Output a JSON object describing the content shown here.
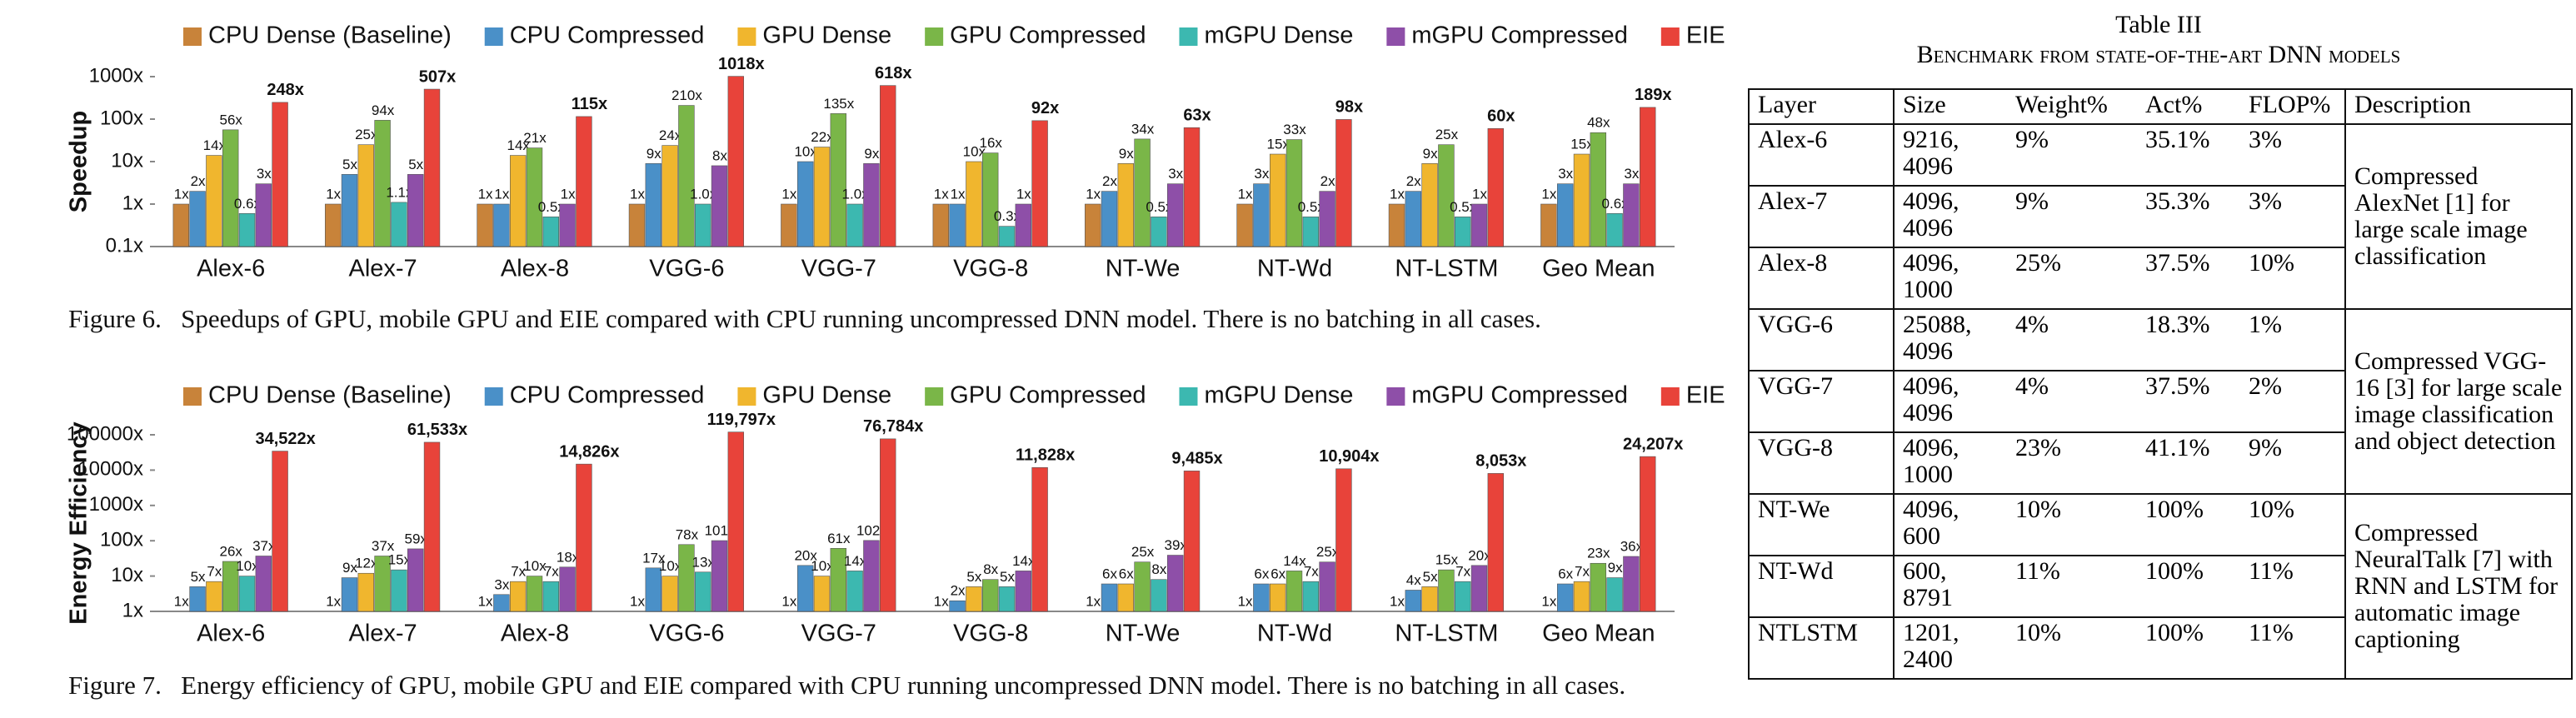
{
  "chart_data": [
    {
      "type": "bar",
      "ylabel": "Speedup",
      "log_scale": true,
      "legend": "top",
      "grid": false,
      "caption": "Figure 6.   Speedups of GPU, mobile GPU and EIE compared with CPU running uncompressed DNN model. There is no batching in all cases.",
      "categories": [
        "Alex-6",
        "Alex-7",
        "Alex-8",
        "VGG-6",
        "VGG-7",
        "VGG-8",
        "NT-We",
        "NT-Wd",
        "NT-LSTM",
        "Geo Mean"
      ],
      "ylim": [
        0.1,
        1000
      ],
      "yticks": [
        {
          "value": 0.1,
          "label": "0.1x"
        },
        {
          "value": 1,
          "label": "1x"
        },
        {
          "value": 10,
          "label": "10x"
        },
        {
          "value": 100,
          "label": "100x"
        },
        {
          "value": 1000,
          "label": "1000x"
        }
      ],
      "series": [
        {
          "name": "CPU Dense (Baseline)",
          "color": "#c8833a",
          "values": [
            1,
            1,
            1,
            1,
            1,
            1,
            1,
            1,
            1,
            1
          ],
          "value_labels": [
            "1x",
            "1x",
            "1x",
            "1x",
            "1x",
            "1x",
            "1x",
            "1x",
            "1x",
            "1x"
          ]
        },
        {
          "name": "CPU Compressed",
          "color": "#4a90c8",
          "values": [
            2,
            5,
            1,
            9,
            10,
            1,
            2,
            3,
            2,
            3
          ],
          "value_labels": [
            "2x",
            "5x",
            "1x",
            "9x",
            "10x",
            "1x",
            "2x",
            "3x",
            "2x",
            "3x"
          ]
        },
        {
          "name": "GPU Dense",
          "color": "#f0b62e",
          "values": [
            14,
            25,
            14,
            24,
            22,
            10,
            9,
            15,
            9,
            15
          ],
          "value_labels": [
            "14x",
            "25x",
            "14x",
            "24x",
            "22x",
            "10x",
            "9x",
            "15x",
            "9x",
            "15x"
          ]
        },
        {
          "name": "GPU Compressed",
          "color": "#7ab648",
          "values": [
            56,
            94,
            21,
            210,
            135,
            16,
            34,
            33,
            25,
            48
          ],
          "value_labels": [
            "56x",
            "94x",
            "21x",
            "210x",
            "135x",
            "16x",
            "34x",
            "33x",
            "25x",
            "48x"
          ]
        },
        {
          "name": "mGPU Dense",
          "color": "#3cb8b0",
          "values": [
            0.6,
            1.1,
            0.5,
            1.0,
            1.0,
            0.3,
            0.5,
            0.5,
            0.5,
            0.6
          ],
          "value_labels": [
            "0.6x",
            "1.1x",
            "0.5x",
            "1.0x",
            "1.0x",
            "0.3x",
            "0.5x",
            "0.5x",
            "0.5x",
            "0.6x"
          ]
        },
        {
          "name": "mGPU Compressed",
          "color": "#8e4fa8",
          "values": [
            3,
            5,
            1,
            8,
            9,
            1,
            3,
            2,
            1,
            3
          ],
          "value_labels": [
            "3x",
            "5x",
            "1x",
            "8x",
            "9x",
            "1x",
            "3x",
            "2x",
            "1x",
            "3x"
          ]
        },
        {
          "name": "EIE",
          "color": "#e8433a",
          "values": [
            248,
            507,
            115,
            1018,
            618,
            92,
            63,
            98,
            60,
            189
          ],
          "value_labels": [
            "248x",
            "507x",
            "115x",
            "1018x",
            "618x",
            "92x",
            "63x",
            "98x",
            "60x",
            "189x"
          ]
        }
      ]
    },
    {
      "type": "bar",
      "ylabel": "Energy Efficiency",
      "log_scale": true,
      "legend": "top",
      "grid": false,
      "caption": "Figure 7.   Energy efficiency of GPU, mobile GPU and EIE compared with CPU running uncompressed DNN model. There is no batching in all cases.",
      "categories": [
        "Alex-6",
        "Alex-7",
        "Alex-8",
        "VGG-6",
        "VGG-7",
        "VGG-8",
        "NT-We",
        "NT-Wd",
        "NT-LSTM",
        "Geo Mean"
      ],
      "ylim": [
        1,
        100000
      ],
      "yticks": [
        {
          "value": 1,
          "label": "1x"
        },
        {
          "value": 10,
          "label": "10x"
        },
        {
          "value": 100,
          "label": "100x"
        },
        {
          "value": 1000,
          "label": "1000x"
        },
        {
          "value": 10000,
          "label": "10000x"
        },
        {
          "value": 100000,
          "label": "100000x"
        }
      ],
      "series": [
        {
          "name": "CPU Dense (Baseline)",
          "color": "#c8833a",
          "values": [
            1,
            1,
            1,
            1,
            1,
            1,
            1,
            1,
            1,
            1
          ],
          "value_labels": [
            "1x",
            "1x",
            "1x",
            "1x",
            "1x",
            "1x",
            "1x",
            "1x",
            "1x",
            "1x"
          ]
        },
        {
          "name": "CPU Compressed",
          "color": "#4a90c8",
          "values": [
            5,
            9,
            3,
            17,
            20,
            2,
            6,
            6,
            4,
            6
          ],
          "value_labels": [
            "5x",
            "9x",
            "3x",
            "17x",
            "20x",
            "2x",
            "6x",
            "6x",
            "4x",
            "6x"
          ]
        },
        {
          "name": "GPU Dense",
          "color": "#f0b62e",
          "values": [
            7,
            12,
            7,
            10,
            10,
            5,
            6,
            6,
            5,
            7
          ],
          "value_labels": [
            "7x",
            "12x",
            "7x",
            "10x",
            "10x",
            "5x",
            "6x",
            "6x",
            "5x",
            "7x"
          ]
        },
        {
          "name": "GPU Compressed",
          "color": "#7ab648",
          "values": [
            26,
            37,
            10,
            78,
            61,
            8,
            25,
            14,
            15,
            23
          ],
          "value_labels": [
            "26x",
            "37x",
            "10x",
            "78x",
            "61x",
            "8x",
            "25x",
            "14x",
            "15x",
            "23x"
          ]
        },
        {
          "name": "mGPU Dense",
          "color": "#3cb8b0",
          "values": [
            10,
            15,
            7,
            13,
            14,
            5,
            8,
            7,
            7,
            9
          ],
          "value_labels": [
            "10x",
            "15x",
            "7x",
            "13x",
            "14x",
            "5x",
            "8x",
            "7x",
            "7x",
            "9x"
          ]
        },
        {
          "name": "mGPU Compressed",
          "color": "#8e4fa8",
          "values": [
            37,
            59,
            18,
            101,
            102,
            14,
            39,
            25,
            20,
            36
          ],
          "value_labels": [
            "37x",
            "59x",
            "18x",
            "101x",
            "102x",
            "14x",
            "39x",
            "25x",
            "20x",
            "36x"
          ]
        },
        {
          "name": "EIE",
          "color": "#e8433a",
          "values": [
            34522,
            61533,
            14826,
            119797,
            76784,
            11828,
            9485,
            10904,
            8053,
            24207
          ],
          "value_labels": [
            "34,522x",
            "61,533x",
            "14,826x",
            "119,797x",
            "76,784x",
            "11,828x",
            "9,485x",
            "10,904x",
            "8,053x",
            "24,207x"
          ]
        }
      ]
    }
  ],
  "table": {
    "title": "Table III",
    "subtitle": "Benchmark from state-of-the-art DNN models",
    "columns": [
      "Layer",
      "Size",
      "Weight%",
      "Act%",
      "FLOP%",
      "Description"
    ],
    "rows": [
      [
        "Alex-6",
        "9216, 4096",
        "9%",
        "35.1%",
        "3%"
      ],
      [
        "Alex-7",
        "4096, 4096",
        "9%",
        "35.3%",
        "3%"
      ],
      [
        "Alex-8",
        "4096, 1000",
        "25%",
        "37.5%",
        "10%"
      ],
      [
        "VGG-6",
        "25088, 4096",
        "4%",
        "18.3%",
        "1%"
      ],
      [
        "VGG-7",
        "4096, 4096",
        "4%",
        "37.5%",
        "2%"
      ],
      [
        "VGG-8",
        "4096, 1000",
        "23%",
        "41.1%",
        "9%"
      ],
      [
        "NT-We",
        "4096, 600",
        "10%",
        "100%",
        "10%"
      ],
      [
        "NT-Wd",
        "600, 8791",
        "11%",
        "100%",
        "11%"
      ],
      [
        "NTLSTM",
        "1201, 2400",
        "10%",
        "100%",
        "11%"
      ]
    ],
    "descriptions": [
      "Compressed AlexNet [1] for large scale image classification",
      "Compressed VGG-16 [3] for large scale image classification and object detection",
      "Compressed NeuralTalk [7] with RNN and LSTM for automatic image captioning"
    ]
  }
}
